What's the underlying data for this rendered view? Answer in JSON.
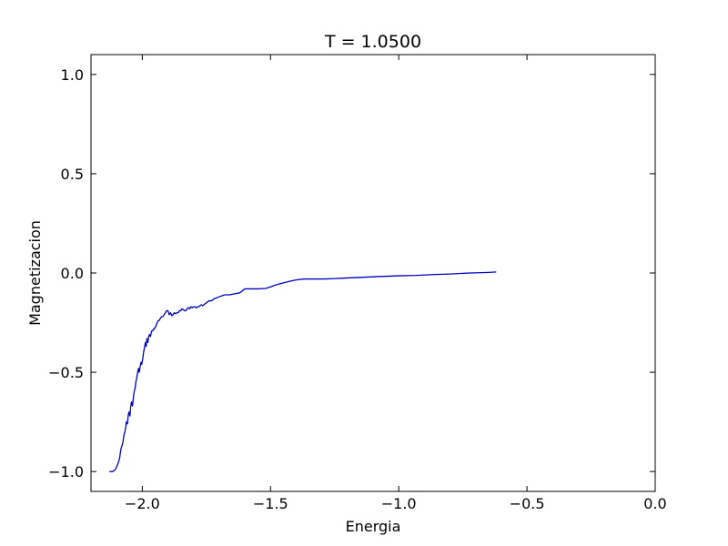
{
  "chart_data": {
    "type": "line",
    "title": "T = 1.0500",
    "xlabel": "Energia",
    "ylabel": "Magnetizacion",
    "xlim": [
      -2.2,
      0.0
    ],
    "ylim": [
      -1.1,
      1.1
    ],
    "grid": false,
    "x_ticks": [
      -2.0,
      -1.5,
      -1.0,
      -0.5,
      0.0
    ],
    "x_tick_labels": [
      "−2.0",
      "−1.5",
      "−1.0",
      "−0.5",
      "0.0"
    ],
    "y_ticks": [
      -1.0,
      -0.5,
      0.0,
      0.5,
      1.0
    ],
    "y_tick_labels": [
      "−1.0",
      "−0.5",
      "0.0",
      "0.5",
      "1.0"
    ],
    "series": [
      {
        "color": "#0000bf",
        "x": [
          -2.128,
          -2.115,
          -2.105,
          -2.098,
          -2.092,
          -2.088,
          -2.085,
          -2.082,
          -2.079,
          -2.075,
          -2.072,
          -2.068,
          -2.065,
          -2.062,
          -2.058,
          -2.055,
          -2.052,
          -2.048,
          -2.045,
          -2.042,
          -2.038,
          -2.035,
          -2.032,
          -2.028,
          -2.025,
          -2.022,
          -2.018,
          -2.015,
          -2.012,
          -2.008,
          -2.005,
          -2.002,
          -1.998,
          -1.995,
          -1.992,
          -1.988,
          -1.985,
          -1.982,
          -1.978,
          -1.975,
          -1.972,
          -1.968,
          -1.965,
          -1.962,
          -1.958,
          -1.955,
          -1.952,
          -1.948,
          -1.945,
          -1.942,
          -1.938,
          -1.935,
          -1.93,
          -1.925,
          -1.92,
          -1.915,
          -1.91,
          -1.905,
          -1.9,
          -1.895,
          -1.89,
          -1.885,
          -1.88,
          -1.875,
          -1.87,
          -1.865,
          -1.86,
          -1.855,
          -1.85,
          -1.845,
          -1.84,
          -1.835,
          -1.83,
          -1.825,
          -1.82,
          -1.815,
          -1.81,
          -1.805,
          -1.8,
          -1.795,
          -1.79,
          -1.785,
          -1.78,
          -1.775,
          -1.77,
          -1.765,
          -1.76,
          -1.755,
          -1.75,
          -1.74,
          -1.73,
          -1.72,
          -1.7,
          -1.68,
          -1.66,
          -1.64,
          -1.62,
          -1.6,
          -1.58,
          -1.55,
          -1.52,
          -1.5,
          -1.48,
          -1.45,
          -1.42,
          -1.4,
          -1.37,
          -1.33,
          -1.29,
          -1.25,
          -1.22,
          -1.15,
          -1.08,
          -1.0,
          -0.93,
          -0.87,
          -0.8,
          -0.72,
          -0.65,
          -0.62
        ],
        "values": [
          -1.0,
          -1.0,
          -0.99,
          -0.97,
          -0.95,
          -0.93,
          -0.9,
          -0.88,
          -0.87,
          -0.85,
          -0.82,
          -0.8,
          -0.78,
          -0.75,
          -0.76,
          -0.72,
          -0.7,
          -0.72,
          -0.67,
          -0.65,
          -0.67,
          -0.63,
          -0.6,
          -0.58,
          -0.55,
          -0.53,
          -0.5,
          -0.48,
          -0.5,
          -0.47,
          -0.45,
          -0.46,
          -0.43,
          -0.4,
          -0.38,
          -0.35,
          -0.37,
          -0.33,
          -0.35,
          -0.32,
          -0.31,
          -0.32,
          -0.3,
          -0.29,
          -0.29,
          -0.28,
          -0.28,
          -0.27,
          -0.26,
          -0.25,
          -0.24,
          -0.24,
          -0.23,
          -0.22,
          -0.22,
          -0.21,
          -0.2,
          -0.19,
          -0.19,
          -0.21,
          -0.2,
          -0.215,
          -0.21,
          -0.2,
          -0.205,
          -0.2,
          -0.2,
          -0.19,
          -0.19,
          -0.18,
          -0.185,
          -0.19,
          -0.19,
          -0.18,
          -0.175,
          -0.18,
          -0.17,
          -0.175,
          -0.17,
          -0.17,
          -0.175,
          -0.17,
          -0.17,
          -0.165,
          -0.16,
          -0.165,
          -0.16,
          -0.155,
          -0.15,
          -0.14,
          -0.14,
          -0.13,
          -0.12,
          -0.11,
          -0.11,
          -0.105,
          -0.1,
          -0.08,
          -0.08,
          -0.08,
          -0.078,
          -0.07,
          -0.06,
          -0.05,
          -0.04,
          -0.035,
          -0.03,
          -0.03,
          -0.03,
          -0.028,
          -0.026,
          -0.022,
          -0.018,
          -0.014,
          -0.012,
          -0.008,
          -0.005,
          0.0,
          0.003,
          0.005
        ]
      }
    ]
  }
}
